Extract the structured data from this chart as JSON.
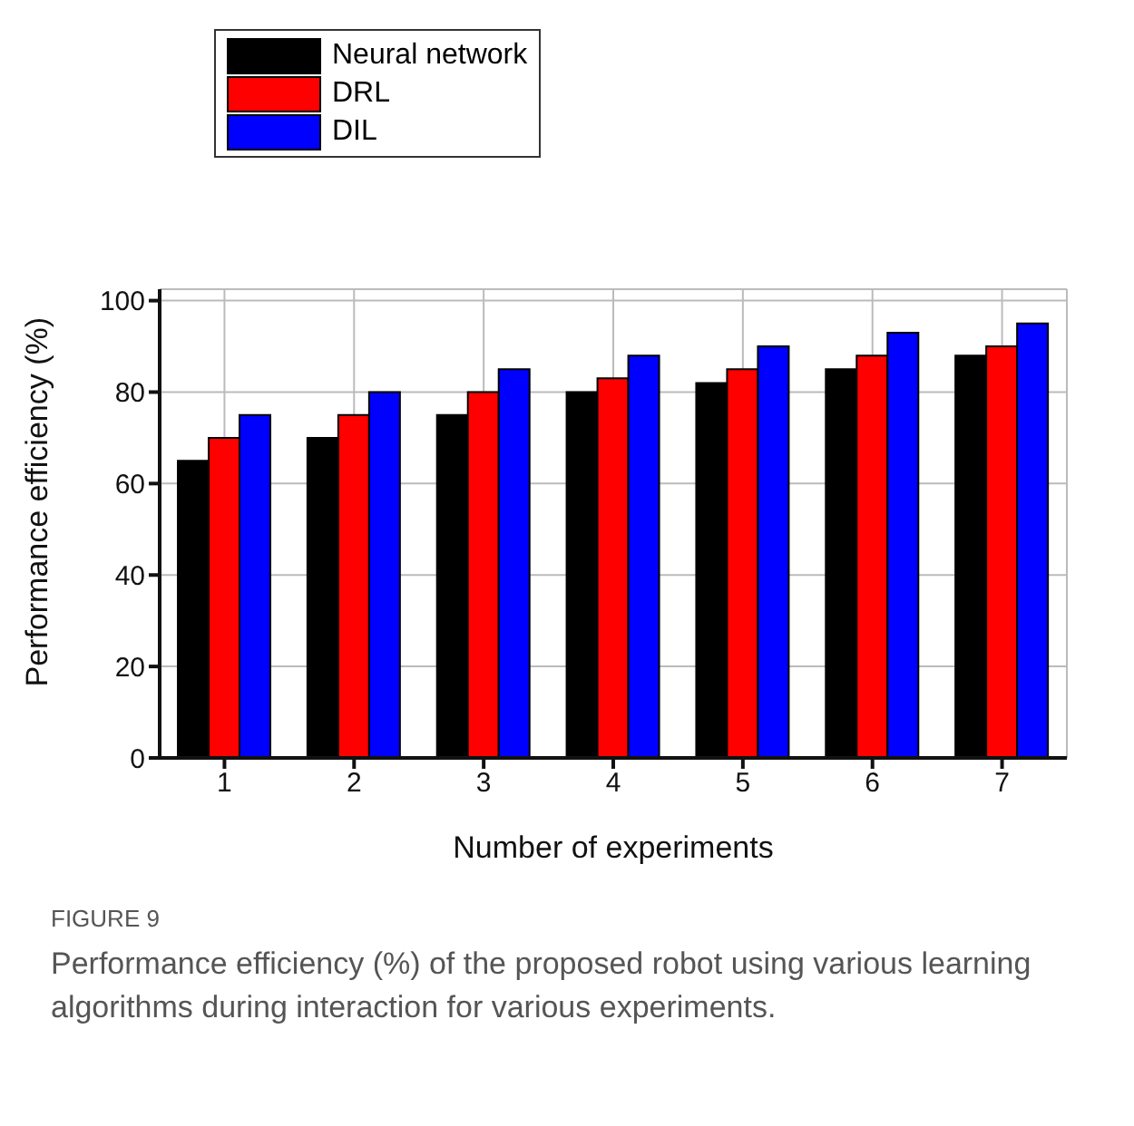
{
  "chart_data": {
    "type": "bar",
    "xlabel": "Number of experiments",
    "ylabel": "Performance efficiency (%)",
    "categories": [
      "1",
      "2",
      "3",
      "4",
      "5",
      "6",
      "7"
    ],
    "series": [
      {
        "name": "Neural network",
        "color": "#000000",
        "values": [
          65,
          70,
          75,
          80,
          82,
          85,
          88
        ]
      },
      {
        "name": "DRL",
        "color": "#ff0000",
        "values": [
          70,
          75,
          80,
          83,
          85,
          88,
          90
        ]
      },
      {
        "name": "DIL",
        "color": "#0000ff",
        "values": [
          75,
          80,
          85,
          88,
          90,
          93,
          95
        ]
      }
    ],
    "ylim": [
      0,
      102.5
    ],
    "yticks": [
      0,
      20,
      40,
      60,
      80,
      100
    ],
    "grid": true,
    "legend": "top left",
    "annotations": [
      "FIGURE 9",
      "Performance efficiency (%) of the proposed robot using various learning algorithms during interaction for various experiments."
    ]
  }
}
